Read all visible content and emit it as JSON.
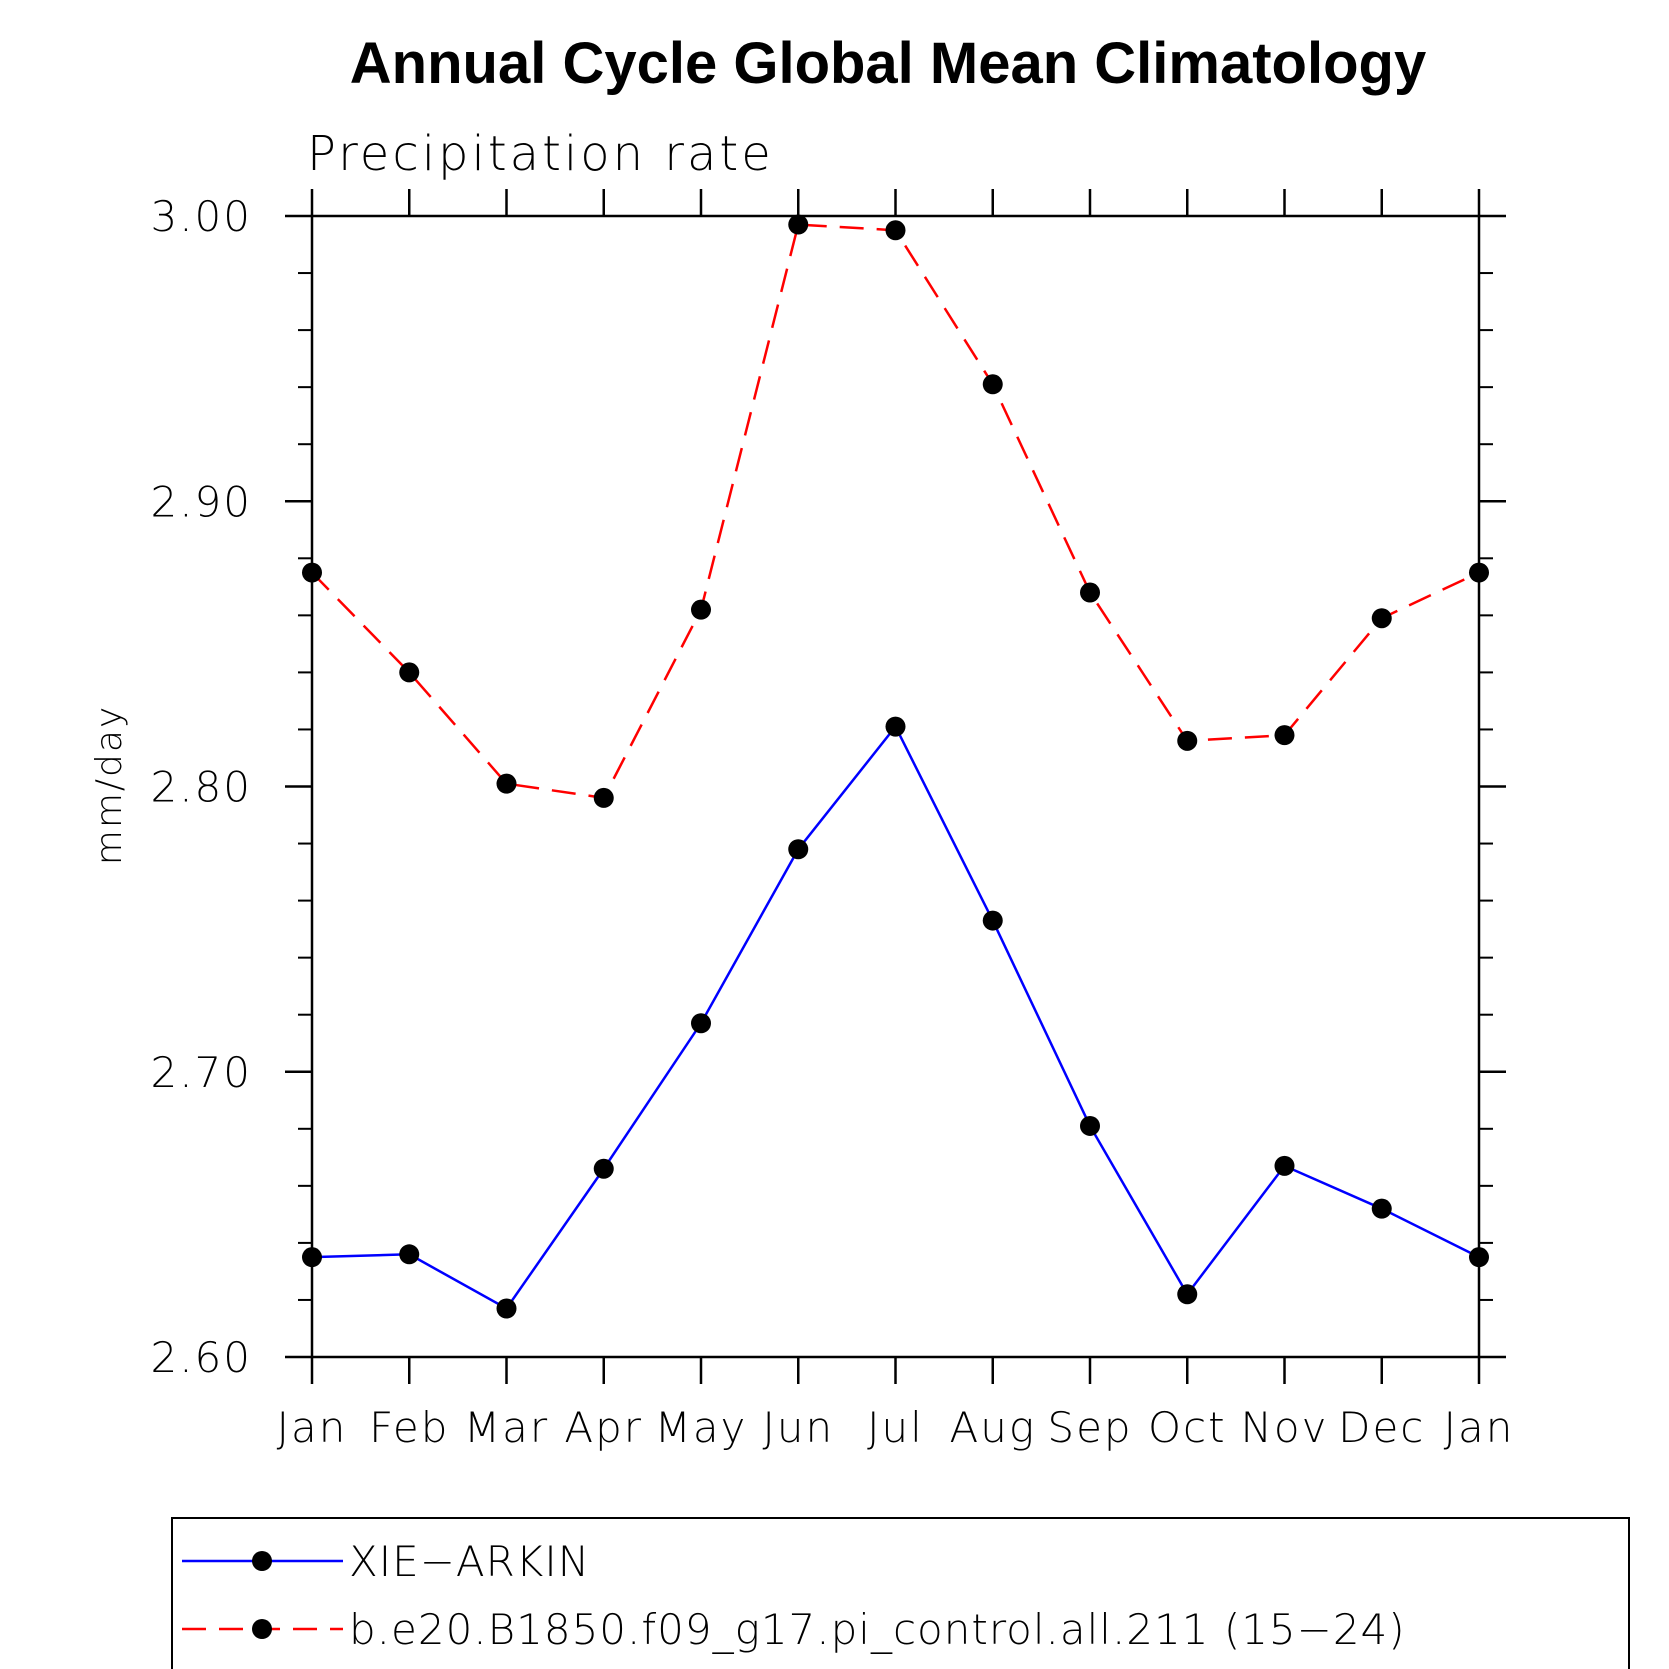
{
  "chart_data": {
    "type": "line",
    "title": "Annual Cycle Global Mean Climatology",
    "subtitle": "Precipitation rate",
    "xlabel": "",
    "ylabel": "mm/day",
    "categories": [
      "Jan",
      "Feb",
      "Mar",
      "Apr",
      "May",
      "Jun",
      "Jul",
      "Aug",
      "Sep",
      "Oct",
      "Nov",
      "Dec",
      "Jan"
    ],
    "ylim": [
      2.6,
      3.0
    ],
    "yticks": [
      "2.60",
      "2.70",
      "2.80",
      "2.90",
      "3.00"
    ],
    "grid": false,
    "legend_position": "bottom",
    "series": [
      {
        "name": "XIE−ARKIN",
        "color": "#0000ff",
        "line_style": "solid",
        "marker": "filled-circle",
        "values": [
          2.635,
          2.636,
          2.617,
          2.666,
          2.717,
          2.778,
          2.821,
          2.753,
          2.681,
          2.622,
          2.667,
          2.652,
          2.635
        ]
      },
      {
        "name": "b.e20.B1850.f09_g17.pi_control.all.211 (15−24)",
        "color": "#ff0000",
        "line_style": "dashed",
        "marker": "filled-circle",
        "values": [
          2.875,
          2.84,
          2.801,
          2.796,
          2.862,
          2.997,
          2.995,
          2.941,
          2.868,
          2.816,
          2.818,
          2.859,
          2.875
        ]
      }
    ]
  }
}
